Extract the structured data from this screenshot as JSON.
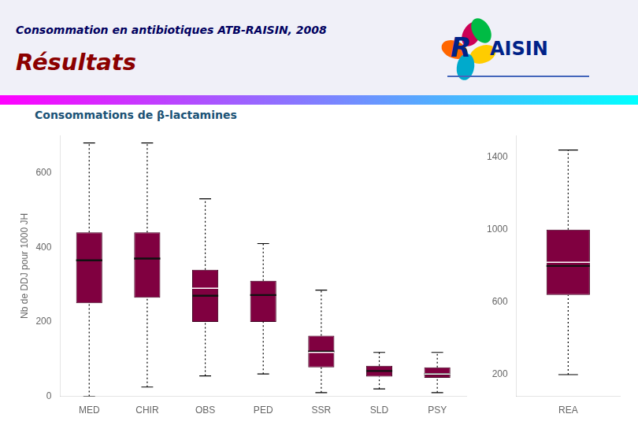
{
  "chart_data": [
    {
      "type": "box",
      "title": "Consommation en antibiotiques ATB-RAISIN, 2008",
      "subtitle": "Résultats",
      "annotations": [
        "Consommations de β-lactamines",
        "R",
        "AISIN"
      ],
      "y_label": "Nb de DDJ pour 1000 JH",
      "categories": [
        "MED",
        "CHIR",
        "OBS",
        "PED",
        "SSR",
        "SLD",
        "PSY"
      ],
      "values": [
        {
          "whisker_low": 0,
          "q1": 250,
          "median": 365,
          "q3": 440,
          "whisker_high": 680
        },
        {
          "whisker_low": 25,
          "q1": 265,
          "median": 370,
          "q3": 440,
          "whisker_high": 680
        },
        {
          "whisker_low": 55,
          "q1": 200,
          "median": 270,
          "q3": 340,
          "whisker_high": 530,
          "mean": 290
        },
        {
          "whisker_low": 60,
          "q1": 200,
          "median": 272,
          "q3": 310,
          "whisker_high": 410
        },
        {
          "whisker_low": 10,
          "q1": 78,
          "median": 120,
          "q3": 163,
          "whisker_high": 285,
          "mean": 118
        },
        {
          "whisker_low": 20,
          "q1": 53,
          "median": 68,
          "q3": 82,
          "whisker_high": 118
        },
        {
          "whisker_low": 10,
          "q1": 50,
          "median": 60,
          "q3": 78,
          "whisker_high": 118,
          "mean": 60
        }
      ],
      "color": "#800040",
      "ylim": [
        0,
        700
      ],
      "yticks": [
        0,
        200,
        400,
        600
      ],
      "grid": false
    },
    {
      "type": "box",
      "categories": [
        "REA"
      ],
      "values": [
        {
          "whisker_low": 200,
          "q1": 640,
          "median": 800,
          "q3": 1000,
          "whisker_high": 1440,
          "mean": 820
        }
      ],
      "color": "#800040",
      "ylim": [
        80,
        1520
      ],
      "yticks": [
        200,
        600,
        1000,
        1400
      ],
      "grid": false
    }
  ]
}
